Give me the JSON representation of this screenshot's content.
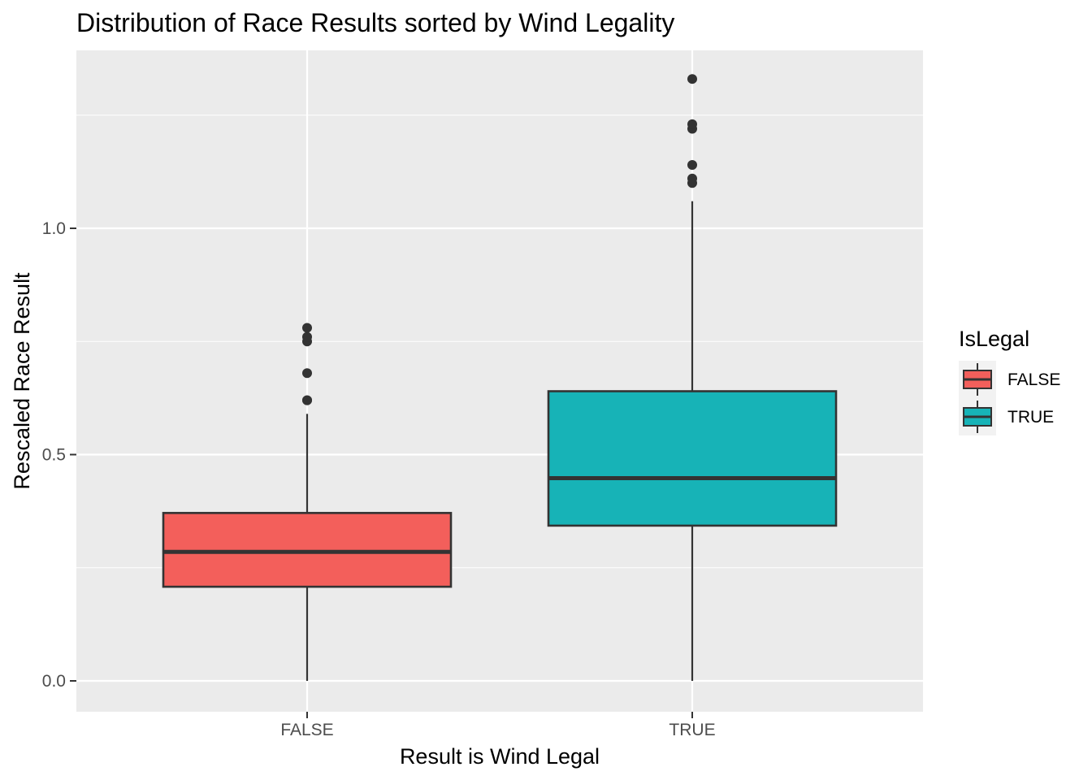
{
  "chart_data": {
    "type": "boxplot",
    "title": "Distribution of Race Results sorted by Wind Legality",
    "xlabel": "Result is Wind Legal",
    "ylabel": "Rescaled Race Result",
    "categories": [
      "FALSE",
      "TRUE"
    ],
    "ylim": [
      -0.067,
      1.39
    ],
    "y_ticks": [
      0.0,
      0.5,
      1.0
    ],
    "y_tick_labels": [
      "0.0",
      "0.5",
      "1.0"
    ],
    "y_minor_ticks": [
      0.25,
      0.75,
      1.25
    ],
    "grid": true,
    "legend": {
      "title": "IsLegal",
      "placement": "right",
      "entries": [
        "FALSE",
        "TRUE"
      ]
    },
    "series": [
      {
        "category": "FALSE",
        "color": "#F8766D",
        "whisker_low": 0.0,
        "q1": 0.208,
        "median": 0.285,
        "q3": 0.371,
        "whisker_high": 0.59,
        "outliers": [
          0.62,
          0.62,
          0.68,
          0.75,
          0.76,
          0.78
        ]
      },
      {
        "category": "TRUE",
        "color": "#00BFC4",
        "whisker_low": 0.0,
        "q1": 0.343,
        "median": 0.448,
        "q3": 0.64,
        "whisker_high": 1.06,
        "outliers": [
          1.1,
          1.11,
          1.14,
          1.22,
          1.23,
          1.33
        ]
      }
    ]
  }
}
